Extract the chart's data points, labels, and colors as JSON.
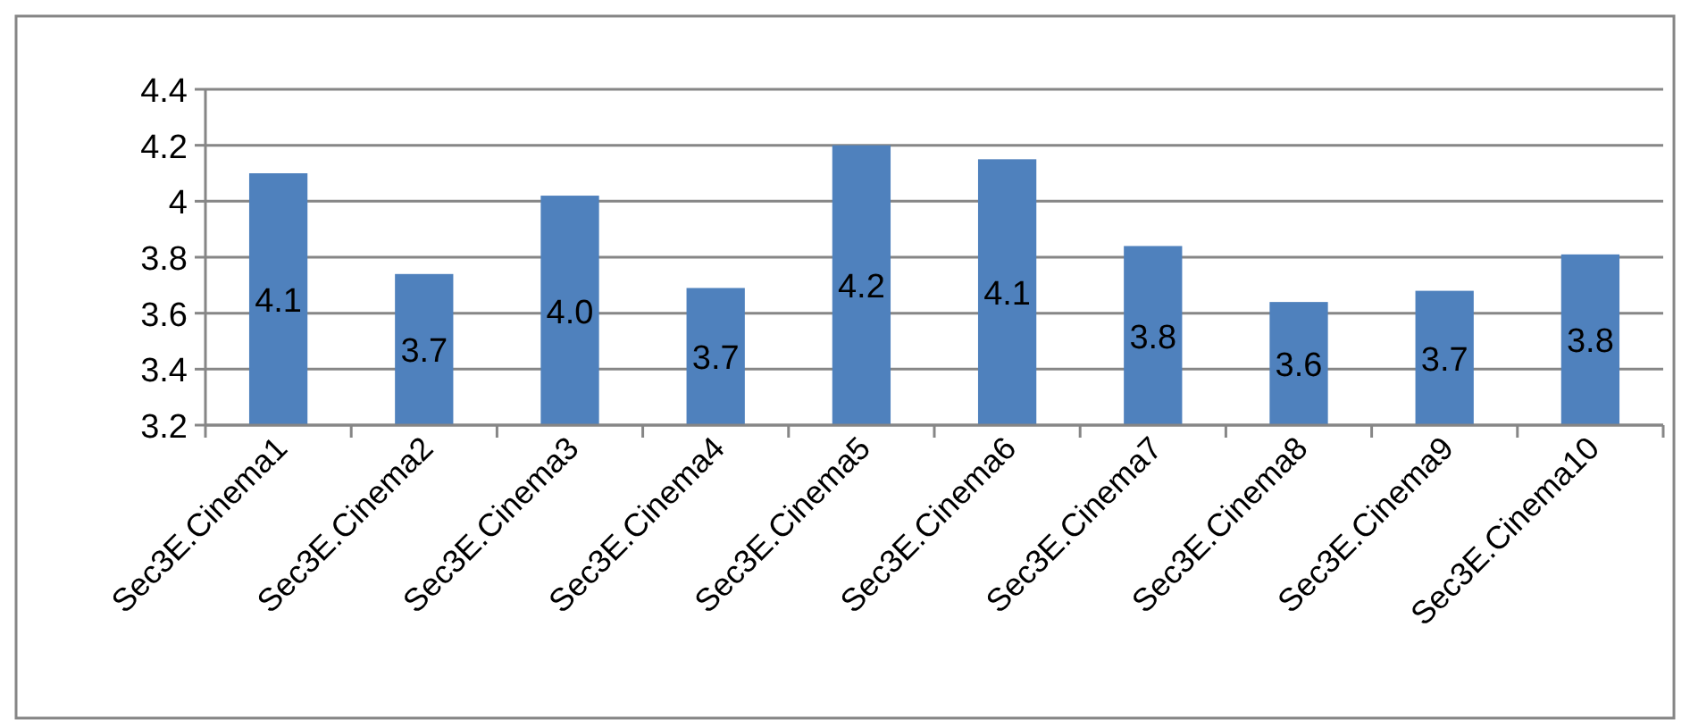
{
  "chart_data": {
    "type": "bar",
    "categories": [
      "Sec3E.Cinema1",
      "Sec3E.Cinema2",
      "Sec3E.Cinema3",
      "Sec3E.Cinema4",
      "Sec3E.Cinema5",
      "Sec3E.Cinema6",
      "Sec3E.Cinema7",
      "Sec3E.Cinema8",
      "Sec3E.Cinema9",
      "Sec3E.Cinema10"
    ],
    "values": [
      4.1,
      3.74,
      4.02,
      3.69,
      4.2,
      4.15,
      3.84,
      3.64,
      3.68,
      3.81
    ],
    "value_labels": [
      "4.1",
      "3.7",
      "4.0",
      "3.7",
      "4.2",
      "4.1",
      "3.8",
      "3.6",
      "3.7",
      "3.8"
    ],
    "color": "#4f81bd",
    "ylim": [
      3.2,
      4.4
    ],
    "yticks": [
      3.2,
      3.4,
      3.6,
      3.8,
      {
        "value": 4,
        "label": "4"
      },
      4.2,
      4.4
    ],
    "grid": "y"
  }
}
